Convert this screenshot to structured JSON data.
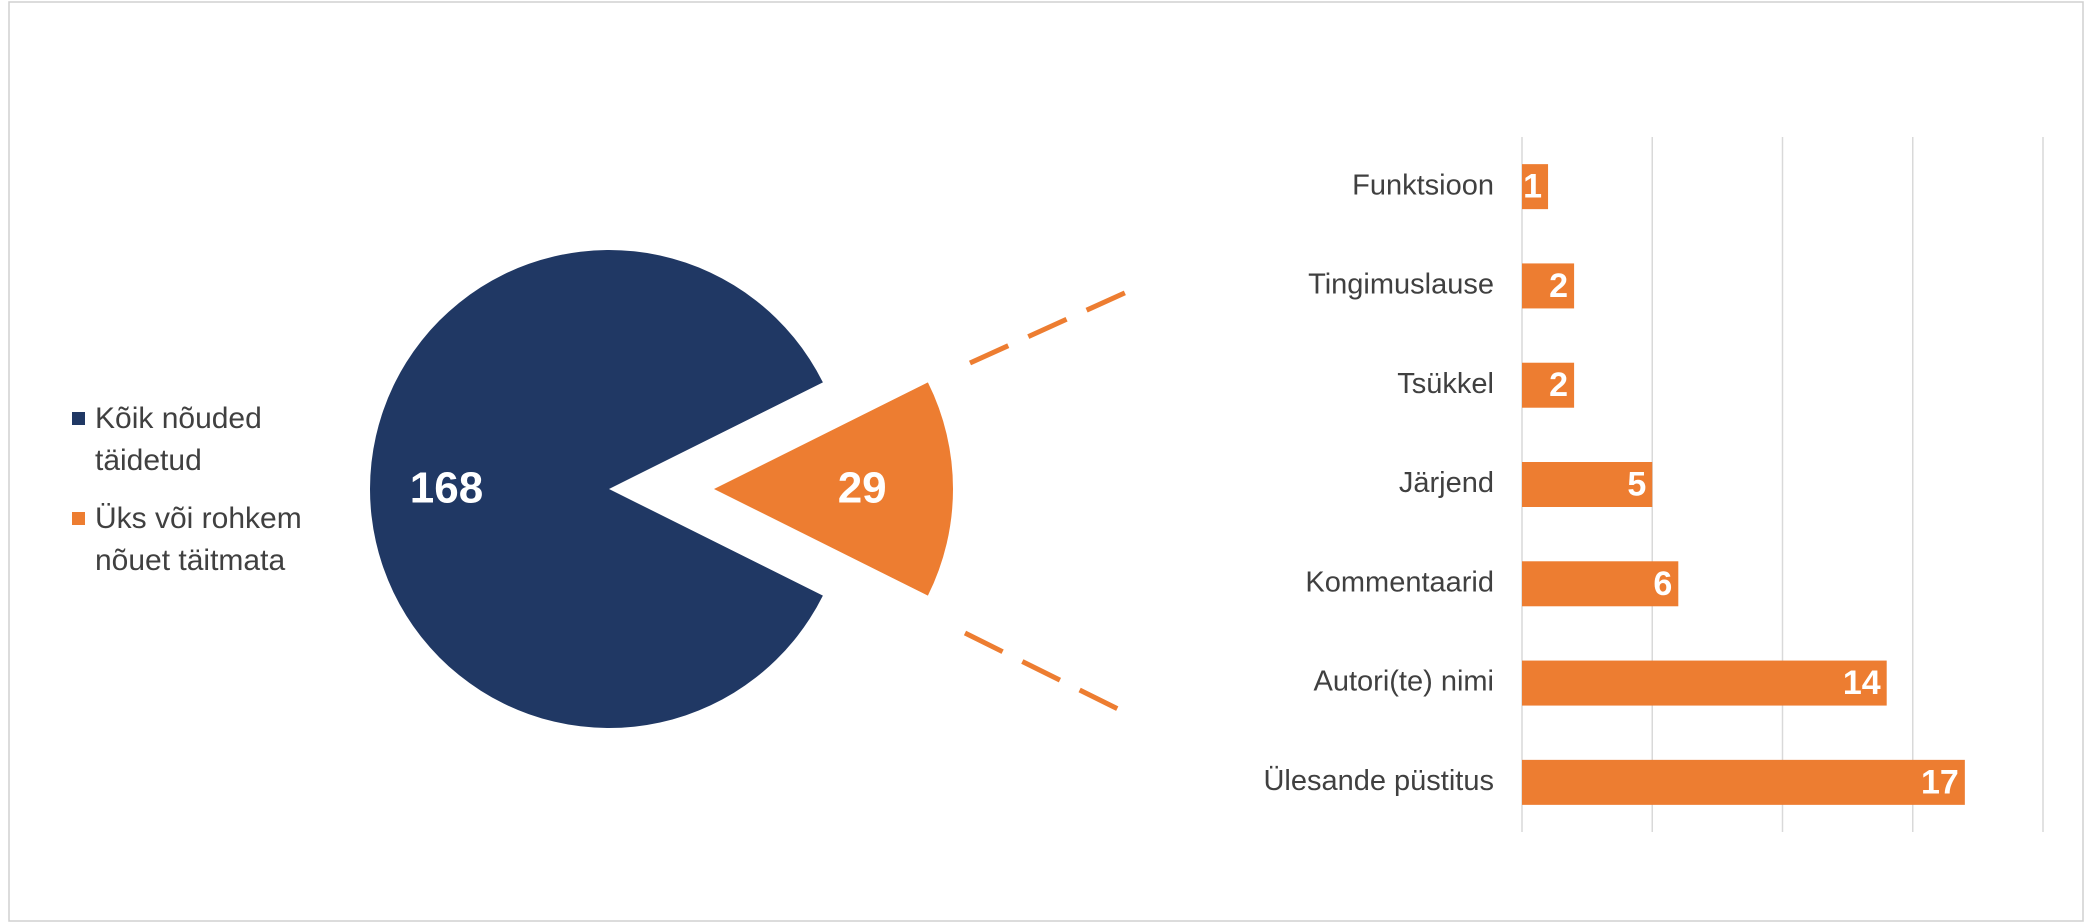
{
  "chart_data": [
    {
      "type": "pie",
      "categories": [
        "Kõik nõuded täidetud",
        "Üks või rohkem nõuet täitmata"
      ],
      "values": [
        168,
        29
      ],
      "colors": [
        "#203864",
        "#ed7d31"
      ]
    },
    {
      "type": "bar",
      "orientation": "horizontal",
      "categories": [
        "Funktsioon",
        "Tingimuslause",
        "Tsükkel",
        "Järjend",
        "Kommentaarid",
        "Autori(te) nimi",
        "Ülesande püstitus"
      ],
      "values": [
        1,
        2,
        2,
        5,
        6,
        14,
        17
      ],
      "color": "#ed7d31",
      "xlim": [
        0,
        20
      ],
      "xticks": [
        0,
        5,
        10,
        15,
        20
      ],
      "grid": true
    }
  ]
}
